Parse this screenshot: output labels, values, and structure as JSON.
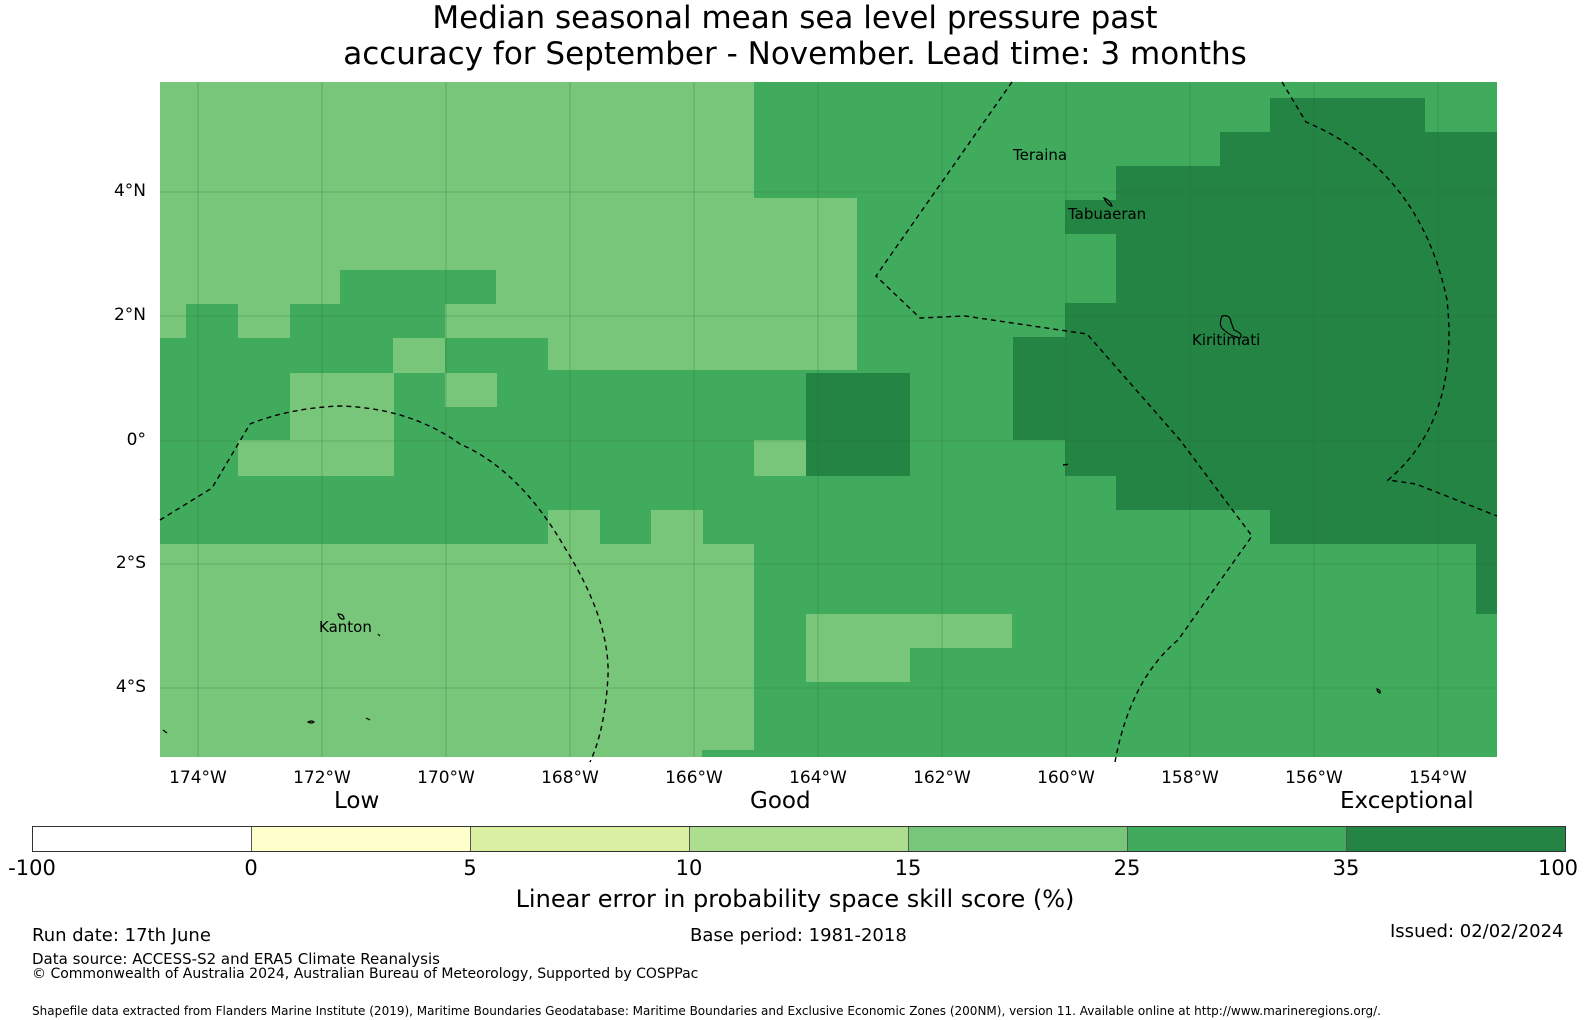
{
  "title": {
    "line1": "Median seasonal mean sea level pressure past",
    "line2": "accuracy for September - November. Lead time: 3 months"
  },
  "axes": {
    "lat_labels": [
      "4°N",
      "2°N",
      "0°",
      "2°S",
      "4°S"
    ],
    "lon_labels": [
      "174°W",
      "172°W",
      "170°W",
      "168°W",
      "166°W",
      "164°W",
      "162°W",
      "160°W",
      "158°W",
      "156°W",
      "154°W"
    ]
  },
  "places": {
    "teraina": "Teraina",
    "tabuaeran": "Tabuaeran",
    "kiritimati": "Kiritimati",
    "kanton": "Kanton"
  },
  "colorbar": {
    "categories": {
      "low": "Low",
      "good": "Good",
      "exceptional": "Exceptional"
    },
    "ticks": [
      "-100",
      "0",
      "5",
      "10",
      "15",
      "25",
      "35",
      "100"
    ],
    "colors": [
      "#ffffff",
      "#ffffcc",
      "#d9f0a3",
      "#addd8e",
      "#78c679",
      "#41ab5d",
      "#238443"
    ],
    "label": "Linear error in probability space skill score (%)"
  },
  "footer": {
    "run_date": "Run date: 17th June",
    "base_period": "Base period: 1981-2018",
    "issued": "Issued: 02/02/2024",
    "data_source": "Data source: ACCESS-S2 and ERA5 Climate Reanalysis",
    "copyright": "© Commonwealth of Australia 2024, Australian Bureau of Meteorology, Supported by COSPPac",
    "shapefile": "Shapefile data extracted from Flanders Marine Institute (2019), Maritime Boundaries Geodatabase: Maritime Boundaries and Exclusive Economic Zones (200NM), version 11. Available online at http://www.marineregions.org/."
  }
}
